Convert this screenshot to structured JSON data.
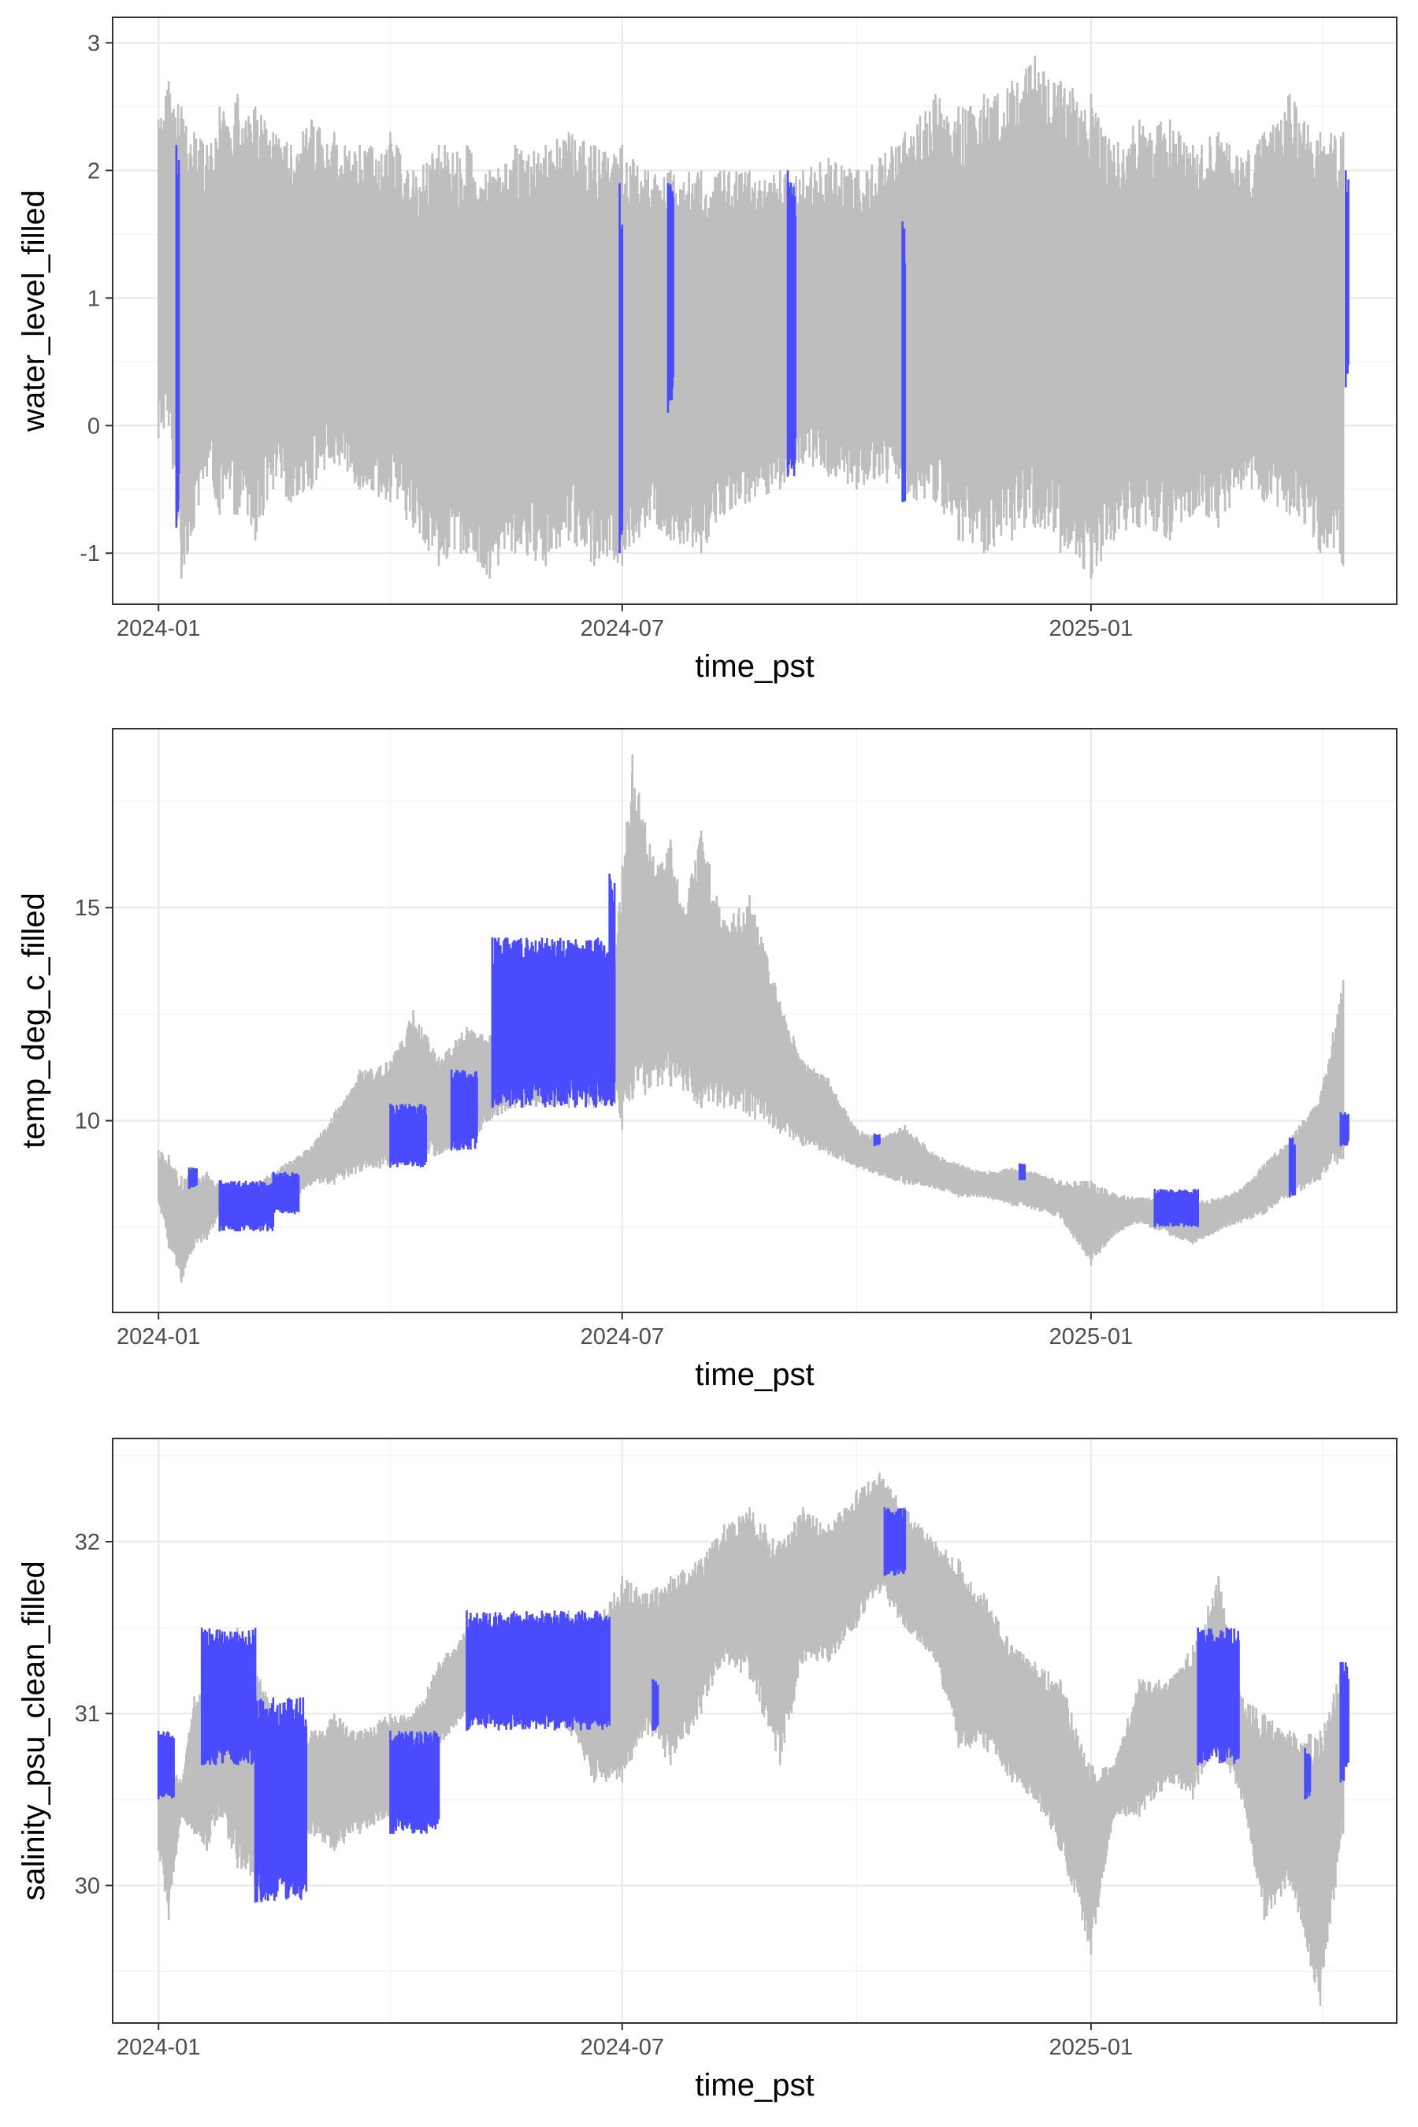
{
  "colors": {
    "filled": "#4a4aff",
    "observed": "#bebebe"
  },
  "chart_data": [
    {
      "type": "line",
      "xlabel": "time_pst",
      "ylabel": "water_level_filled",
      "x_ticks": [
        "2024-01",
        "2024-07",
        "2025-01"
      ],
      "y_ticks": [
        "-1",
        "0",
        "1",
        "2",
        "3"
      ],
      "xlim": [
        "2023-12-14",
        "2025-05-01"
      ],
      "ylim": [
        -1.4,
        3.2
      ],
      "grid": true,
      "series": [
        {
          "color": "#bebebe",
          "envelope": {
            "x": [
              "2024-01-01",
              "2024-01-05",
              "2024-01-10",
              "2024-01-15",
              "2024-01-20",
              "2024-01-25",
              "2024-02-01",
              "2024-02-08",
              "2024-02-15",
              "2024-02-22",
              "2024-03-01",
              "2024-03-10",
              "2024-03-20",
              "2024-04-01",
              "2024-04-10",
              "2024-04-20",
              "2024-05-01",
              "2024-05-10",
              "2024-05-20",
              "2024-06-01",
              "2024-06-10",
              "2024-06-20",
              "2024-07-01",
              "2024-07-10",
              "2024-07-20",
              "2024-08-01",
              "2024-08-10",
              "2024-08-20",
              "2024-09-01",
              "2024-09-10",
              "2024-09-20",
              "2024-10-01",
              "2024-10-10",
              "2024-10-20",
              "2024-11-01",
              "2024-11-10",
              "2024-11-20",
              "2024-12-01",
              "2024-12-10",
              "2024-12-20",
              "2025-01-01",
              "2025-01-10",
              "2025-01-20",
              "2025-02-01",
              "2025-02-10",
              "2025-02-20",
              "2025-03-01",
              "2025-03-10",
              "2025-03-20",
              "2025-04-01",
              "2025-04-10"
            ],
            "high": [
              2.4,
              2.7,
              2.5,
              2.3,
              2.2,
              2.5,
              2.6,
              2.5,
              2.3,
              2.2,
              2.4,
              2.3,
              2.2,
              2.3,
              2.0,
              2.2,
              2.2,
              2.0,
              2.2,
              2.2,
              2.3,
              2.2,
              2.2,
              2.0,
              2.0,
              2.0,
              2.0,
              2.0,
              2.0,
              2.0,
              2.1,
              2.0,
              2.1,
              2.3,
              2.6,
              2.5,
              2.6,
              2.7,
              2.9,
              2.7,
              2.6,
              2.2,
              2.4,
              2.4,
              2.2,
              2.3,
              2.1,
              2.3,
              2.6,
              2.3,
              2.3
            ],
            "low": [
              -0.1,
              0.0,
              -1.2,
              -0.8,
              -0.4,
              -0.7,
              -0.7,
              -0.9,
              -0.5,
              -0.6,
              -0.5,
              -0.3,
              -0.5,
              -0.6,
              -0.8,
              -1.1,
              -1.0,
              -1.2,
              -1.0,
              -1.1,
              -0.9,
              -1.1,
              -1.1,
              -0.8,
              -0.9,
              -1.0,
              -0.7,
              -0.6,
              -0.5,
              -0.3,
              -0.4,
              -0.5,
              -0.4,
              -0.6,
              -0.6,
              -0.9,
              -1.0,
              -0.9,
              -0.8,
              -1.0,
              -1.2,
              -0.9,
              -0.8,
              -0.9,
              -0.7,
              -0.8,
              -0.5,
              -0.6,
              -0.7,
              -1.0,
              -1.1
            ]
          }
        },
        {
          "color": "#4a4aff",
          "segments": [
            {
              "start": "2024-01-08",
              "end": "2024-01-09",
              "low": -0.8,
              "high": 2.2
            },
            {
              "start": "2024-06-30",
              "end": "2024-07-01",
              "low": -1.0,
              "high": 1.9
            },
            {
              "start": "2024-07-19",
              "end": "2024-07-21",
              "low": 0.1,
              "high": 1.9
            },
            {
              "start": "2024-09-04",
              "end": "2024-09-07",
              "low": -0.4,
              "high": 2.0
            },
            {
              "start": "2024-10-19",
              "end": "2024-10-20",
              "low": -0.6,
              "high": 1.6
            },
            {
              "start": "2025-04-11",
              "end": "2025-04-12",
              "low": 0.3,
              "high": 2.0
            }
          ]
        }
      ]
    },
    {
      "type": "line",
      "xlabel": "time_pst",
      "ylabel": "temp_deg_c_filled",
      "x_ticks": [
        "2024-01",
        "2024-07",
        "2025-01"
      ],
      "y_ticks": [
        "10",
        "15"
      ],
      "xlim": [
        "2023-12-14",
        "2025-05-01"
      ],
      "ylim": [
        5.5,
        19.2
      ],
      "grid": true,
      "series": [
        {
          "color": "#bebebe",
          "envelope": {
            "x": [
              "2024-01-01",
              "2024-01-05",
              "2024-01-10",
              "2024-01-15",
              "2024-01-20",
              "2024-01-25",
              "2024-02-01",
              "2024-02-10",
              "2024-02-20",
              "2024-03-01",
              "2024-03-10",
              "2024-03-20",
              "2024-04-01",
              "2024-04-10",
              "2024-04-20",
              "2024-05-01",
              "2024-05-10",
              "2024-05-20",
              "2024-06-01",
              "2024-06-10",
              "2024-06-20",
              "2024-06-28",
              "2024-07-01",
              "2024-07-05",
              "2024-07-10",
              "2024-07-15",
              "2024-07-20",
              "2024-07-25",
              "2024-08-01",
              "2024-08-10",
              "2024-08-20",
              "2024-09-01",
              "2024-09-10",
              "2024-09-20",
              "2024-10-01",
              "2024-10-10",
              "2024-10-20",
              "2024-11-01",
              "2024-11-10",
              "2024-11-20",
              "2024-12-01",
              "2024-12-10",
              "2024-12-20",
              "2025-01-01",
              "2025-01-10",
              "2025-01-20",
              "2025-02-01",
              "2025-02-10",
              "2025-02-20",
              "2025-03-01",
              "2025-03-10",
              "2025-03-20",
              "2025-04-01",
              "2025-04-10"
            ],
            "high": [
              9.3,
              9.2,
              8.7,
              8.7,
              8.8,
              8.5,
              8.5,
              8.6,
              9.0,
              9.4,
              10.2,
              11.2,
              11.4,
              12.6,
              11.5,
              12.2,
              12.0,
              12.7,
              13.1,
              13.5,
              13.5,
              13.7,
              16.0,
              18.6,
              17.0,
              16.0,
              16.6,
              15.0,
              16.8,
              14.7,
              15.3,
              12.8,
              11.4,
              11.0,
              9.8,
              9.6,
              9.9,
              9.2,
              9.0,
              8.8,
              8.9,
              8.8,
              8.6,
              8.6,
              8.3,
              8.2,
              8.2,
              8.1,
              8.2,
              8.4,
              9.0,
              9.6,
              10.6,
              13.3
            ],
            "high_note": "",
            "low": [
              8.1,
              7.0,
              6.2,
              7.0,
              7.2,
              7.8,
              7.8,
              7.6,
              8.0,
              8.5,
              8.5,
              8.8,
              8.9,
              9.0,
              9.2,
              9.4,
              10.0,
              10.3,
              10.3,
              10.3,
              10.3,
              10.4,
              9.8,
              10.5,
              10.6,
              10.8,
              10.8,
              10.7,
              10.3,
              10.3,
              10.1,
              9.7,
              9.4,
              9.2,
              8.9,
              8.7,
              8.5,
              8.4,
              8.2,
              8.2,
              8.0,
              7.9,
              7.7,
              6.6,
              7.3,
              7.6,
              7.3,
              7.1,
              7.4,
              7.6,
              7.8,
              8.2,
              8.6,
              9.1
            ]
          }
        },
        {
          "color": "#4a4aff",
          "segments": [
            {
              "start": "2024-01-13",
              "end": "2024-01-16",
              "low": 8.4,
              "high": 8.9
            },
            {
              "start": "2024-01-25",
              "end": "2024-02-15",
              "low": 7.4,
              "high": 8.6
            },
            {
              "start": "2024-02-15",
              "end": "2024-02-25",
              "low": 7.8,
              "high": 8.8
            },
            {
              "start": "2024-04-01",
              "end": "2024-04-15",
              "low": 8.9,
              "high": 10.4
            },
            {
              "start": "2024-04-25",
              "end": "2024-05-05",
              "low": 9.3,
              "high": 11.2
            },
            {
              "start": "2024-05-11",
              "end": "2024-06-28",
              "low": 10.3,
              "high": 14.3
            },
            {
              "start": "2024-06-26",
              "end": "2024-06-28",
              "low": 10.5,
              "high": 15.8
            },
            {
              "start": "2024-10-08",
              "end": "2024-10-10",
              "low": 9.4,
              "high": 9.7
            },
            {
              "start": "2024-12-04",
              "end": "2024-12-06",
              "low": 8.6,
              "high": 9.0
            },
            {
              "start": "2025-01-26",
              "end": "2025-02-12",
              "low": 7.5,
              "high": 8.4
            },
            {
              "start": "2025-03-20",
              "end": "2025-03-22",
              "low": 8.2,
              "high": 9.6
            },
            {
              "start": "2025-04-09",
              "end": "2025-04-12",
              "low": 9.4,
              "high": 10.2
            }
          ]
        }
      ]
    },
    {
      "type": "line",
      "xlabel": "time_pst",
      "ylabel": "salinity_psu_clean_filled",
      "x_ticks": [
        "2024-01",
        "2024-07",
        "2025-01"
      ],
      "y_ticks": [
        "30",
        "31",
        "32"
      ],
      "xlim": [
        "2023-12-14",
        "2025-05-01"
      ],
      "ylim": [
        29.2,
        32.6
      ],
      "grid": true,
      "series": [
        {
          "color": "#bebebe",
          "envelope": {
            "x": [
              "2024-01-01",
              "2024-01-05",
              "2024-01-10",
              "2024-01-15",
              "2024-01-20",
              "2024-01-25",
              "2024-02-01",
              "2024-02-10",
              "2024-02-20",
              "2024-03-01",
              "2024-03-10",
              "2024-03-20",
              "2024-04-01",
              "2024-04-10",
              "2024-04-20",
              "2024-05-01",
              "2024-05-10",
              "2024-05-20",
              "2024-06-01",
              "2024-06-10",
              "2024-06-20",
              "2024-07-01",
              "2024-07-10",
              "2024-07-20",
              "2024-08-01",
              "2024-08-10",
              "2024-08-20",
              "2024-09-01",
              "2024-09-10",
              "2024-09-20",
              "2024-10-01",
              "2024-10-10",
              "2024-10-20",
              "2024-11-01",
              "2024-11-10",
              "2024-11-20",
              "2024-12-01",
              "2024-12-10",
              "2024-12-20",
              "2025-01-01",
              "2025-01-10",
              "2025-01-20",
              "2025-02-01",
              "2025-02-10",
              "2025-02-20",
              "2025-03-01",
              "2025-03-10",
              "2025-03-20",
              "2025-04-01",
              "2025-04-10"
            ],
            "high": [
              30.9,
              30.8,
              30.6,
              31.1,
              31.3,
              31.4,
              31.5,
              31.2,
              30.9,
              30.9,
              31.0,
              30.9,
              31.0,
              31.0,
              31.3,
              31.5,
              31.4,
              31.5,
              31.5,
              31.6,
              31.5,
              31.8,
              31.7,
              31.8,
              31.9,
              32.1,
              32.2,
              32.0,
              32.2,
              32.1,
              32.3,
              32.4,
              32.2,
              32.0,
              31.9,
              31.7,
              31.4,
              31.3,
              31.2,
              30.7,
              30.7,
              31.2,
              31.2,
              31.4,
              31.8,
              31.1,
              31.0,
              30.9,
              30.9,
              31.3
            ],
            "low": [
              30.2,
              29.8,
              30.4,
              30.3,
              30.2,
              30.4,
              30.1,
              29.9,
              30.2,
              30.3,
              30.2,
              30.3,
              30.4,
              30.3,
              30.8,
              31.0,
              31.0,
              31.0,
              31.0,
              30.9,
              30.6,
              30.6,
              30.9,
              30.7,
              31.0,
              31.3,
              31.2,
              30.7,
              31.3,
              31.3,
              31.5,
              31.7,
              31.5,
              31.3,
              30.8,
              30.8,
              30.6,
              30.5,
              30.2,
              29.6,
              30.4,
              30.4,
              30.6,
              30.5,
              30.8,
              30.5,
              29.8,
              30.0,
              29.3,
              30.3
            ]
          }
        },
        {
          "color": "#4a4aff",
          "segments": [
            {
              "start": "2024-01-01",
              "end": "2024-01-07",
              "low": 30.5,
              "high": 30.9
            },
            {
              "start": "2024-01-18",
              "end": "2024-02-08",
              "low": 30.7,
              "high": 31.5
            },
            {
              "start": "2024-02-08",
              "end": "2024-02-28",
              "low": 29.9,
              "high": 31.1
            },
            {
              "start": "2024-04-01",
              "end": "2024-04-20",
              "low": 30.3,
              "high": 30.9
            },
            {
              "start": "2024-05-01",
              "end": "2024-06-26",
              "low": 30.9,
              "high": 31.6
            },
            {
              "start": "2024-07-13",
              "end": "2024-07-15",
              "low": 30.9,
              "high": 31.2
            },
            {
              "start": "2024-10-12",
              "end": "2024-10-20",
              "low": 31.8,
              "high": 32.2
            },
            {
              "start": "2025-02-12",
              "end": "2025-02-28",
              "low": 30.7,
              "high": 31.5
            },
            {
              "start": "2025-03-26",
              "end": "2025-03-28",
              "low": 30.5,
              "high": 30.8
            },
            {
              "start": "2025-04-09",
              "end": "2025-04-12",
              "low": 30.6,
              "high": 31.3
            }
          ]
        }
      ]
    }
  ]
}
